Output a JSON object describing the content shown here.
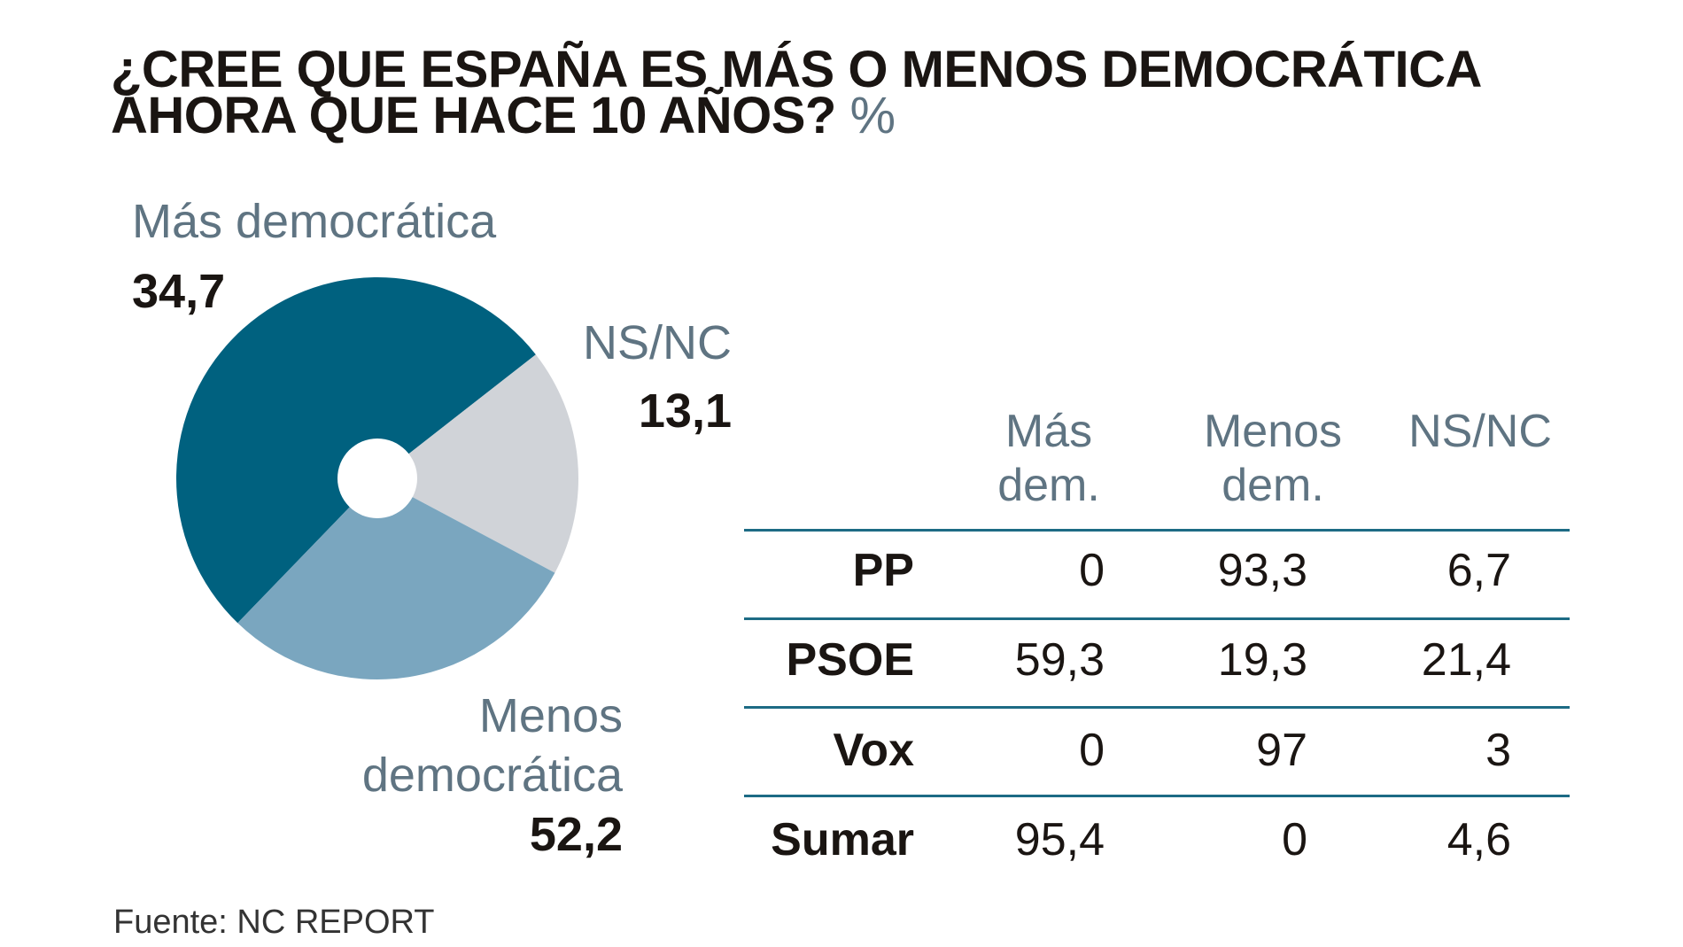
{
  "title": {
    "line1": "¿CREE QUE ESPAÑA ES MÁS O MENOS DEMOCRÁTICA",
    "line2": "AHORA QUE HACE 10 AÑOS?",
    "unit": "%"
  },
  "chart_data": [
    {
      "type": "pie",
      "donut": true,
      "slices": [
        {
          "label": "Más democrática",
          "value_label": "34,7",
          "value": 34.7,
          "color": "#00617f"
        },
        {
          "label": "NS/NC",
          "value_label": "13,1",
          "value": 13.1,
          "color": "#d0d3d8"
        },
        {
          "label_line1": "Menos",
          "label_line2": "democrática",
          "value_label": "52,2",
          "value": 52.2,
          "color": "#7aa6bf"
        }
      ]
    },
    {
      "type": "table",
      "columns": [
        {
          "line1": "Más",
          "line2": "dem."
        },
        {
          "line1": "Menos",
          "line2": "dem."
        },
        {
          "line1": "NS/NC",
          "line2": ""
        }
      ],
      "rows": [
        {
          "party": "PP",
          "values": [
            "0",
            "93,3",
            "6,7"
          ]
        },
        {
          "party": "PSOE",
          "values": [
            "59,3",
            "19,3",
            "21,4"
          ]
        },
        {
          "party": "Vox",
          "values": [
            "0",
            "97",
            "3"
          ]
        },
        {
          "party": "Sumar",
          "values": [
            "95,4",
            "0",
            "4,6"
          ]
        }
      ],
      "rule_color": "#1d6b85"
    }
  ],
  "source": "Fuente: NC REPORT"
}
